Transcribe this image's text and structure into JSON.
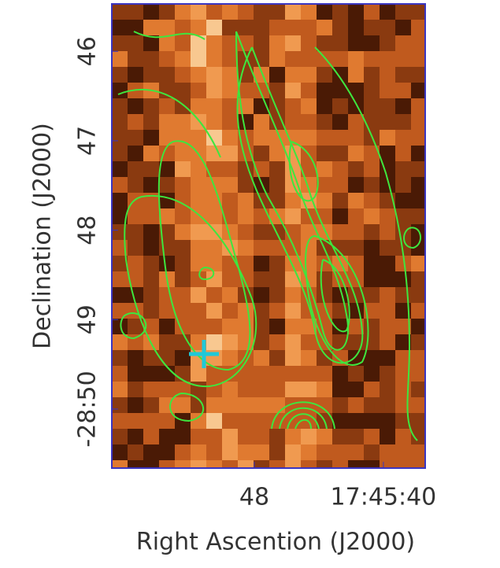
{
  "chart_data": {
    "type": "image",
    "xlabel": "Right Ascention (J2000)",
    "ylabel": "Declination (J2000)",
    "xlim": [
      56.83,
      37.41
    ],
    "ylim": [
      50.66,
      45.47
    ],
    "xticks": [
      48,
      {
        "value": 40,
        "label": "17:45:40"
      }
    ],
    "yticks": [
      46,
      47,
      48,
      49,
      {
        "value": 50,
        "label": "-28:50"
      }
    ]
  }
}
